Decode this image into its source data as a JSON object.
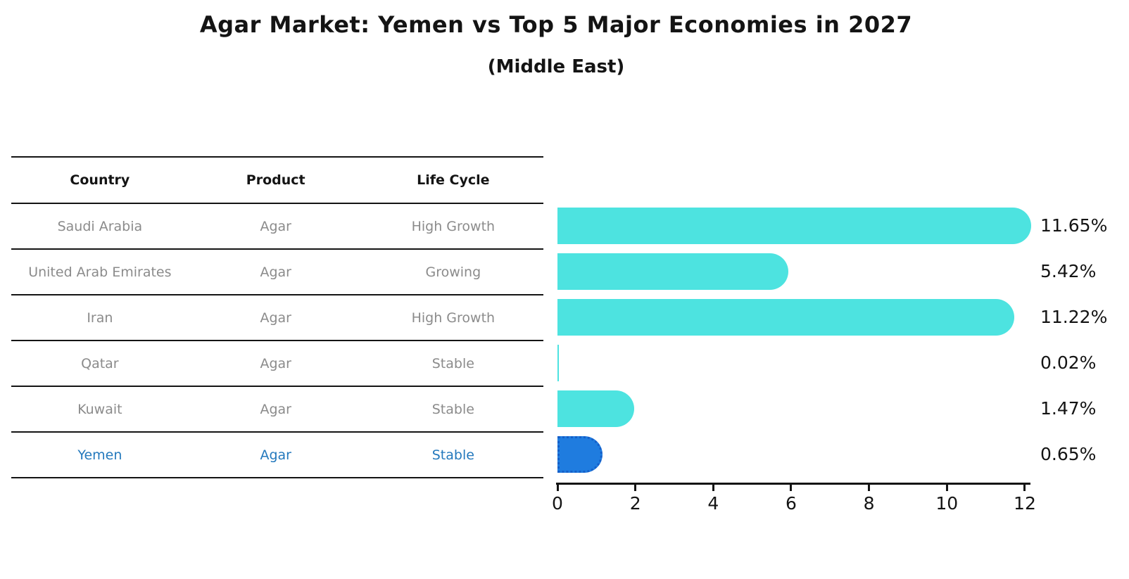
{
  "chart_data": {
    "type": "bar",
    "orientation": "horizontal",
    "title": "Agar Market: Yemen vs Top 5 Major Economies in 2027",
    "subtitle": "(Middle East)",
    "categories": [
      "Saudi Arabia",
      "United Arab Emirates",
      "Iran",
      "Qatar",
      "Kuwait",
      "Yemen"
    ],
    "values": [
      11.65,
      5.42,
      11.22,
      0.02,
      1.47,
      0.65
    ],
    "value_labels": [
      "11.65%",
      "5.42%",
      "11.22%",
      "0.02%",
      "1.47%",
      "0.65%"
    ],
    "highlight_index": 5,
    "xlim": [
      0,
      12
    ],
    "x_ticks": [
      "0",
      "2",
      "4",
      "6",
      "8",
      "10",
      "12"
    ],
    "ylabel": "",
    "xlabel": "",
    "grid": false,
    "legend": "none"
  },
  "table": {
    "headers": [
      "Country",
      "Product",
      "Life Cycle"
    ],
    "rows": [
      {
        "country": "Saudi Arabia",
        "product": "Agar",
        "life_cycle": "High Growth",
        "highlight": false
      },
      {
        "country": "United Arab Emirates",
        "product": "Agar",
        "life_cycle": "Growing",
        "highlight": false
      },
      {
        "country": "Iran",
        "product": "Agar",
        "life_cycle": "High Growth",
        "highlight": false
      },
      {
        "country": "Qatar",
        "product": "Agar",
        "life_cycle": "Stable",
        "highlight": false
      },
      {
        "country": "Kuwait",
        "product": "Agar",
        "life_cycle": "Stable",
        "highlight": false
      },
      {
        "country": "Yemen",
        "product": "Agar",
        "life_cycle": "Stable",
        "highlight": true
      }
    ]
  },
  "colors": {
    "background": "#ffffff",
    "bar": "#4DE3E0",
    "highlight_bar": "#1F7CDF",
    "highlight_border": "#155FC9",
    "highlight_text": "#2479BD",
    "table_text": "#8B8B8B",
    "header_text": "#141414",
    "line": "#141414",
    "axis": "#141414"
  }
}
